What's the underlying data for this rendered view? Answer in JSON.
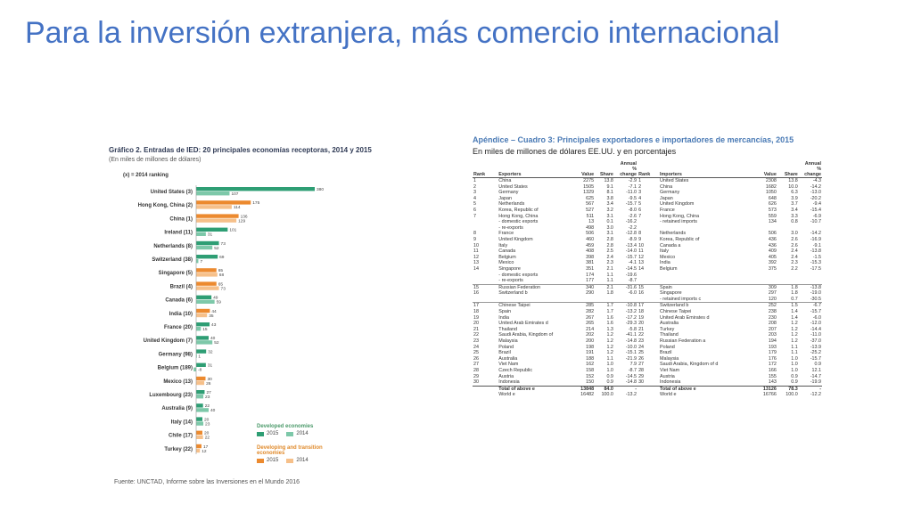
{
  "slide": {
    "title": "Para la inversión extranjera, más comercio internacional"
  },
  "colors": {
    "title": "#4472c4",
    "developed_2015": "#2e9e74",
    "developed_2014": "#7dc8a9",
    "developing_2015": "#ec8a2f",
    "developing_2014": "#f6c08a",
    "table_title": "#4a7ab5"
  },
  "chart_data": {
    "type": "bar",
    "orientation": "horizontal",
    "title": "Gráfico 2. Entradas de IED: 20 principales economías receptoras, 2014 y 2015",
    "subtitle": "(En miles de millones de dólares)",
    "note": "(x) = 2014 ranking",
    "categories": [
      "United States (3)",
      "Hong Kong, China (2)",
      "China (1)",
      "Ireland (11)",
      "Netherlands (8)",
      "Switzerland (38)",
      "Singapore (5)",
      "Brazil (4)",
      "Canada (6)",
      "India (10)",
      "France (20)",
      "United Kingdom (7)",
      "Germany (98)",
      "Belgium (189)",
      "Mexico (13)",
      "Luxembourg (23)",
      "Australia (9)",
      "Italy (14)",
      "Chile (17)",
      "Turkey (22)"
    ],
    "group": [
      "developed",
      "developing",
      "developing",
      "developed",
      "developed",
      "developed",
      "developing",
      "developing",
      "developed",
      "developing",
      "developed",
      "developed",
      "developed",
      "developed",
      "developing",
      "developed",
      "developed",
      "developed",
      "developing",
      "developing"
    ],
    "series": [
      {
        "name": "2015",
        "values": [
          380,
          175,
          136,
          101,
          73,
          69,
          65,
          65,
          49,
          44,
          43,
          40,
          32,
          31,
          30,
          27,
          22,
          20,
          20,
          17
        ]
      },
      {
        "name": "2014",
        "values": [
          107,
          114,
          129,
          31,
          52,
          7,
          68,
          73,
          59,
          35,
          15,
          52,
          1,
          -8,
          26,
          23,
          40,
          23,
          22,
          12
        ]
      }
    ],
    "value_labels": [
      [
        "380",
        "107"
      ],
      [
        "175",
        "114"
      ],
      [
        "136",
        "129"
      ],
      [
        "101",
        "31"
      ],
      [
        "73",
        "52"
      ],
      [
        "69",
        "7"
      ],
      [
        "65",
        "68"
      ],
      [
        "65",
        "73"
      ],
      [
        "49",
        "59"
      ],
      [
        "44",
        "35"
      ],
      [
        "43",
        "15"
      ],
      [
        "40",
        "52"
      ],
      [
        "32",
        "1"
      ],
      [
        "31",
        "-8"
      ],
      [
        "30",
        "26"
      ],
      [
        "27",
        "23"
      ],
      [
        "22",
        "40"
      ],
      [
        "20",
        "23"
      ],
      [
        "20",
        "22"
      ],
      [
        "17",
        "12"
      ]
    ],
    "xlim": [
      -10,
      400
    ],
    "legend": {
      "developed_title": "Developed economies",
      "developing_title": "Developing and transition economies",
      "label_2015": "2015",
      "label_2014": "2014",
      "placement": "bottom-right"
    },
    "source": "Fuente: UNCTAD, Informe sobre las Inversiones en el Mundo 2016"
  },
  "trade_table": {
    "title": "Apéndice – Cuadro 3: Principales exportadores e importadores de mercancías, 2015",
    "subtitle": "En miles de millones de dólares EE.UU. y en porcentajes",
    "headers": {
      "rank": "Rank",
      "exporters": "Exporters",
      "value": "Value",
      "share": "Share",
      "change": "Annual % change",
      "rank2": "Rank",
      "importers": "Importers",
      "value2": "Value",
      "share2": "Share",
      "change2": "Annual % change"
    },
    "rows": [
      [
        "1",
        "China",
        "2275",
        "13.8",
        "-2.9",
        "1",
        "United States",
        "2308",
        "13.8",
        "-4.3"
      ],
      [
        "2",
        "United States",
        "1505",
        "9.1",
        "-7.1",
        "2",
        "China",
        "1682",
        "10.0",
        "-14.2"
      ],
      [
        "3",
        "Germany",
        "1329",
        "8.1",
        "-11.0",
        "3",
        "Germany",
        "1050",
        "6.3",
        "-13.0"
      ],
      [
        "4",
        "Japan",
        "625",
        "3.8",
        "-9.5",
        "4",
        "Japan",
        "648",
        "3.9",
        "-20.2"
      ],
      [
        "5",
        "Netherlands",
        "567",
        "3.4",
        "-15.7",
        "5",
        "United Kingdom",
        "626",
        "3.7",
        "-9.4"
      ],
      [
        "6",
        "Korea, Republic of",
        "527",
        "3.2",
        "-8.0",
        "6",
        "France",
        "573",
        "3.4",
        "-15.4"
      ],
      [
        "7",
        "Hong Kong, China",
        "511",
        "3.1",
        "-2.6",
        "7",
        "Hong Kong, China",
        "559",
        "3.3",
        "-6.9"
      ],
      [
        "",
        "- domestic exports",
        "13",
        "0.1",
        "-16.2",
        "",
        "- retained imports",
        "134",
        "0.8",
        "-10.7"
      ],
      [
        "",
        "- re-exports",
        "498",
        "3.0",
        "-2.2",
        "",
        "",
        "",
        "",
        ""
      ],
      [
        "8",
        "France",
        "506",
        "3.1",
        "-12.8",
        "8",
        "Netherlands",
        "506",
        "3.0",
        "-14.2"
      ],
      [
        "9",
        "United Kingdom",
        "460",
        "2.8",
        "-8.9",
        "9",
        "Korea, Republic of",
        "436",
        "2.6",
        "-16.9"
      ],
      [
        "10",
        "Italy",
        "459",
        "2.8",
        "-13.4",
        "10",
        "Canada a",
        "436",
        "2.6",
        "-9.1"
      ],
      [
        "11",
        "Canada",
        "408",
        "2.5",
        "-14.0",
        "11",
        "Italy",
        "409",
        "2.4",
        "-13.8"
      ],
      [
        "12",
        "Belgium",
        "398",
        "2.4",
        "-15.7",
        "12",
        "Mexico",
        "405",
        "2.4",
        "-1.5"
      ],
      [
        "13",
        "Mexico",
        "381",
        "2.3",
        "-4.1",
        "13",
        "India",
        "392",
        "2.3",
        "-15.3"
      ],
      [
        "14",
        "Singapore",
        "351",
        "2.1",
        "-14.5",
        "14",
        "Belgium",
        "375",
        "2.2",
        "-17.5"
      ],
      [
        "",
        "- domestic exports",
        "174",
        "1.1",
        "-19.6",
        "",
        "",
        "",
        "",
        ""
      ],
      [
        "",
        "- re-exports",
        "177",
        "1.1",
        "-8.7",
        "",
        "",
        "",
        "",
        ""
      ],
      [
        "15",
        "Russian Federation",
        "340",
        "2.1",
        "-31.6",
        "15",
        "Spain",
        "309",
        "1.8",
        "-13.8"
      ],
      [
        "16",
        "Switzerland b",
        "290",
        "1.8",
        "-6.0",
        "16",
        "Singapore",
        "297",
        "1.8",
        "-19.0"
      ],
      [
        "",
        "",
        "",
        "",
        "",
        "",
        "- retained imports c",
        "120",
        "0.7",
        "-30.5"
      ],
      [
        "17",
        "Chinese Taipei",
        "285",
        "1.7",
        "-10.8",
        "17",
        "Switzerland b",
        "252",
        "1.5",
        "-6.7"
      ],
      [
        "18",
        "Spain",
        "282",
        "1.7",
        "-13.2",
        "18",
        "Chinese Taipei",
        "238",
        "1.4",
        "-15.7"
      ],
      [
        "19",
        "India",
        "267",
        "1.6",
        "-17.2",
        "19",
        "United Arab Emirates d",
        "230",
        "1.4",
        "-6.0"
      ],
      [
        "20",
        "United Arab Emirates d",
        "265",
        "1.6",
        "-29.3",
        "20",
        "Australia",
        "208",
        "1.2",
        "-12.0"
      ],
      [
        "21",
        "Thailand",
        "214",
        "1.3",
        "-5.8",
        "21",
        "Turkey",
        "207",
        "1.2",
        "-14.4"
      ],
      [
        "22",
        "Saudi Arabia, Kingdom of",
        "202",
        "1.2",
        "-41.1",
        "22",
        "Thailand",
        "203",
        "1.2",
        "-11.0"
      ],
      [
        "23",
        "Malaysia",
        "200",
        "1.2",
        "-14.8",
        "23",
        "Russian Federation a",
        "194",
        "1.2",
        "-37.0"
      ],
      [
        "24",
        "Poland",
        "198",
        "1.2",
        "-10.0",
        "24",
        "Poland",
        "193",
        "1.1",
        "-13.9"
      ],
      [
        "25",
        "Brazil",
        "191",
        "1.2",
        "-15.1",
        "25",
        "Brazil",
        "179",
        "1.1",
        "-25.2"
      ],
      [
        "26",
        "Australia",
        "188",
        "1.1",
        "-21.9",
        "26",
        "Malaysia",
        "176",
        "1.0",
        "-15.7"
      ],
      [
        "27",
        "Viet Nam",
        "162",
        "1.0",
        "7.9",
        "27",
        "Saudi Arabia, Kingdom of d",
        "172",
        "1.0",
        "0.9"
      ],
      [
        "28",
        "Czech Republic",
        "158",
        "1.0",
        "-8.7",
        "28",
        "Viet Nam",
        "166",
        "1.0",
        "12.1"
      ],
      [
        "29",
        "Austria",
        "152",
        "0.9",
        "-14.5",
        "29",
        "Austria",
        "155",
        "0.9",
        "-14.7"
      ],
      [
        "30",
        "Indonesia",
        "150",
        "0.9",
        "-14.8",
        "30",
        "Indonesia",
        "143",
        "0.9",
        "-19.9"
      ]
    ],
    "totals": [
      [
        "",
        "Total of above e",
        "13848",
        "84.0",
        "-",
        "",
        "Total of above e",
        "13126",
        "78.3",
        "-"
      ],
      [
        "",
        "World e",
        "16482",
        "100.0",
        "-13.2",
        "",
        "World e",
        "16766",
        "100.0",
        "-12.2"
      ]
    ]
  }
}
